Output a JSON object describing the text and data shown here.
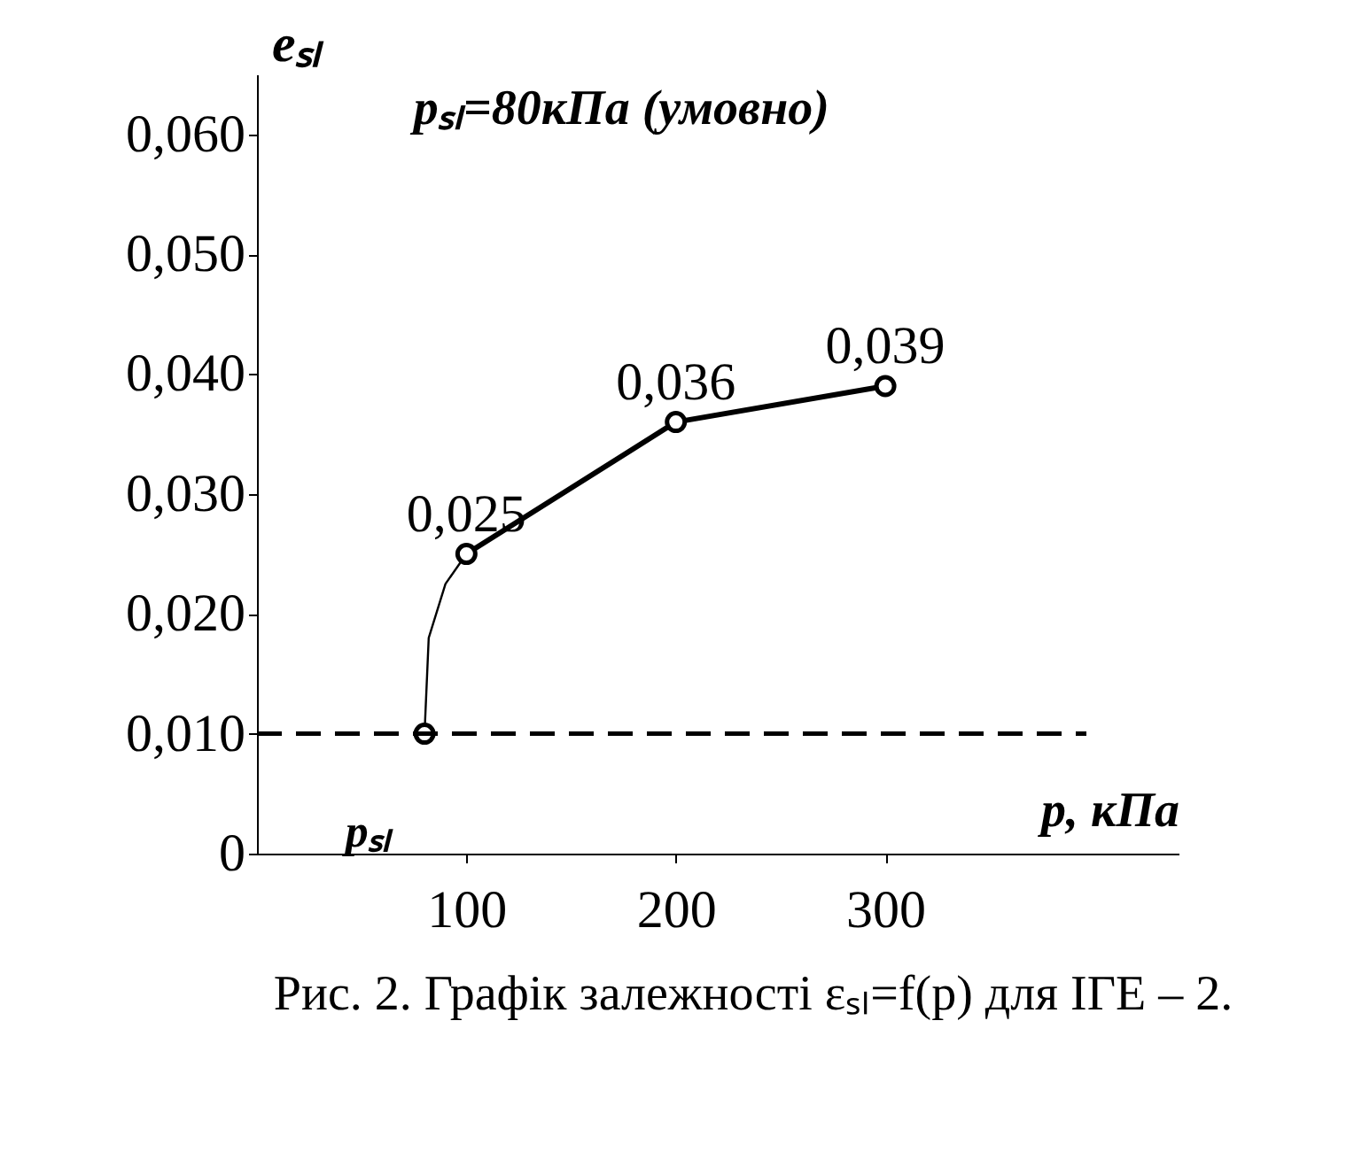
{
  "chart_data": {
    "type": "line",
    "xlabel": "p, кПа",
    "ylabel": "eₛₗ",
    "xlim": [
      0,
      440
    ],
    "ylim": [
      0,
      0.065
    ],
    "xticks": [
      100,
      200,
      300
    ],
    "yticks": [
      {
        "value": 0,
        "label": "0"
      },
      {
        "value": 0.01,
        "label": "0,010"
      },
      {
        "value": 0.02,
        "label": "0,020"
      },
      {
        "value": 0.03,
        "label": "0,030"
      },
      {
        "value": 0.04,
        "label": "0,040"
      },
      {
        "value": 0.05,
        "label": "0,050"
      },
      {
        "value": 0.06,
        "label": "0,060"
      }
    ],
    "series": [
      {
        "color": "#000000",
        "marker": "none",
        "x": [
          80,
          82,
          90,
          100
        ],
        "values": [
          0.01,
          0.018,
          0.0225,
          0.025
        ]
      },
      {
        "color": "#000000",
        "marker": "none",
        "x": [
          100,
          200,
          300
        ],
        "values": [
          0.025,
          0.036,
          0.039
        ]
      },
      {
        "type": "scatter",
        "color": "#000000",
        "marker": "circle",
        "x": [
          80,
          100,
          200,
          300
        ],
        "values": [
          0.01,
          0.025,
          0.036,
          0.039
        ]
      }
    ],
    "ref_lines": [
      {
        "axis": "y",
        "value": 0.01,
        "color": "#000000",
        "line_style": "dashed"
      }
    ],
    "annotations": [
      {
        "text": "0,025",
        "x": 100,
        "y": 0.025
      },
      {
        "text": "0,036",
        "x": 200,
        "y": 0.036
      },
      {
        "text": "0,039",
        "x": 300,
        "y": 0.039
      },
      "pₛₗ",
      "pₛₗ=80кПа (умовно)",
      "Рис. 2. Графік залежності εₛₗ=f(p) для ІГЕ – 2."
    ],
    "grid": false
  }
}
